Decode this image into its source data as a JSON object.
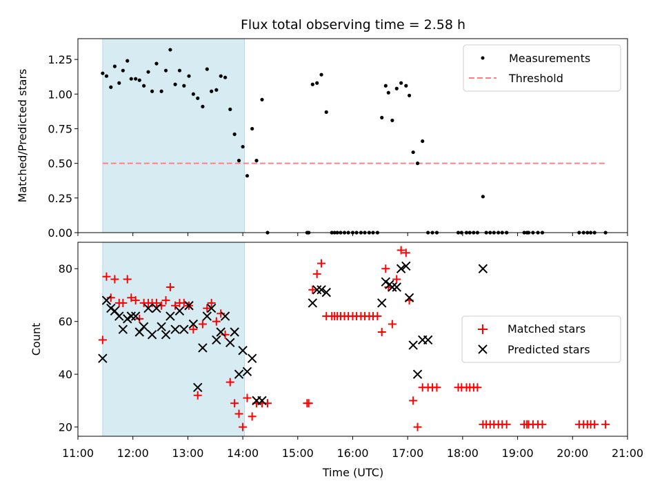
{
  "chart_data": {
    "title": "Flux total observing time = 2.58 h",
    "xlabel": "Time (UTC)",
    "xlim_hours": [
      11.0,
      21.0
    ],
    "x_ticks": [
      {
        "value": 11,
        "label": "11:00"
      },
      {
        "value": 12,
        "label": "12:00"
      },
      {
        "value": 13,
        "label": "13:00"
      },
      {
        "value": 14,
        "label": "14:00"
      },
      {
        "value": 15,
        "label": "15:00"
      },
      {
        "value": 16,
        "label": "16:00"
      },
      {
        "value": 17,
        "label": "17:00"
      },
      {
        "value": 18,
        "label": "18:00"
      },
      {
        "value": 19,
        "label": "19:00"
      },
      {
        "value": 20,
        "label": "20:00"
      },
      {
        "value": 21,
        "label": "21:00"
      }
    ],
    "observing_window_hours": [
      11.45,
      14.03
    ],
    "colors": {
      "span": "#add8e6",
      "measurement": "#000000",
      "threshold": "#ff7f7f",
      "matched": "#ff0000",
      "predicted": "#000000"
    },
    "top": {
      "type": "scatter",
      "ylabel": "Matched/Predicted stars",
      "ylim": [
        0,
        1.4
      ],
      "y_ticks": [
        {
          "value": 0,
          "label": "0.00"
        },
        {
          "value": 0.25,
          "label": "0.25"
        },
        {
          "value": 0.5,
          "label": "0.50"
        },
        {
          "value": 0.75,
          "label": "0.75"
        },
        {
          "value": 1.0,
          "label": "1.00"
        },
        {
          "value": 1.25,
          "label": "1.25"
        }
      ],
      "threshold": {
        "value": 0.5,
        "x_range": [
          11.45,
          20.6
        ],
        "label": "Threshold"
      },
      "measurements_label": "Measurements",
      "x": [
        11.45,
        11.52,
        11.6,
        11.67,
        11.75,
        11.82,
        11.9,
        11.97,
        12.05,
        12.12,
        12.2,
        12.28,
        12.35,
        12.43,
        12.52,
        12.6,
        12.68,
        12.77,
        12.85,
        12.93,
        13.02,
        13.1,
        13.18,
        13.27,
        13.35,
        13.43,
        13.52,
        13.6,
        13.68,
        13.77,
        13.85,
        13.93,
        14.0,
        14.08,
        14.17,
        14.25,
        14.35,
        14.45,
        15.17,
        15.2,
        15.27,
        15.35,
        15.43,
        15.52,
        15.62,
        15.67,
        15.72,
        15.78,
        15.85,
        15.92,
        16.0,
        16.07,
        16.15,
        16.22,
        16.3,
        16.37,
        16.45,
        16.53,
        16.6,
        16.65,
        16.72,
        16.8,
        16.88,
        16.97,
        17.03,
        17.1,
        17.18,
        17.27,
        17.37,
        17.45,
        17.53,
        17.92,
        17.98,
        18.07,
        18.13,
        18.2,
        18.27,
        18.37,
        18.43,
        18.5,
        18.57,
        18.65,
        18.72,
        18.8,
        19.12,
        19.17,
        19.2,
        19.28,
        19.37,
        19.45,
        20.12,
        20.2,
        20.27,
        20.33,
        20.4,
        20.6
      ],
      "y": [
        1.15,
        1.13,
        1.05,
        1.2,
        1.08,
        1.17,
        1.24,
        1.11,
        1.11,
        1.1,
        1.06,
        1.16,
        1.02,
        1.22,
        1.02,
        1.17,
        1.32,
        1.07,
        1.17,
        1.06,
        1.13,
        1.0,
        0.97,
        0.91,
        1.18,
        1.02,
        1.03,
        1.13,
        1.12,
        0.89,
        0.71,
        0.52,
        0.62,
        0.41,
        0.75,
        0.52,
        0.96,
        0.0,
        0.0,
        0.0,
        1.07,
        1.08,
        1.14,
        0.87,
        0.0,
        0.0,
        0.0,
        0.0,
        0.0,
        0.0,
        0.0,
        0.0,
        0.0,
        0.0,
        0.0,
        0.0,
        0.0,
        0.83,
        1.06,
        1.01,
        0.81,
        1.04,
        1.08,
        1.06,
        0.99,
        0.58,
        0.5,
        0.66,
        0.0,
        0.0,
        0.0,
        0.0,
        0.0,
        0.0,
        0.0,
        0.0,
        0.0,
        0.26,
        0.0,
        0.0,
        0.0,
        0.0,
        0.0,
        0.0,
        0.0,
        0.0,
        0.0,
        0.0,
        0.0,
        0.0,
        0.0,
        0.0,
        0.0,
        0.0,
        0.0,
        0.0
      ]
    },
    "bottom": {
      "type": "scatter",
      "ylabel": "Count",
      "ylim": [
        16.5,
        90
      ],
      "y_ticks": [
        {
          "value": 20,
          "label": "20"
        },
        {
          "value": 40,
          "label": "40"
        },
        {
          "value": 60,
          "label": "60"
        },
        {
          "value": 80,
          "label": "80"
        }
      ],
      "series": [
        {
          "name": "Matched stars",
          "marker": "plus",
          "x": [
            11.45,
            11.52,
            11.6,
            11.67,
            11.75,
            11.82,
            11.9,
            11.97,
            12.05,
            12.12,
            12.2,
            12.28,
            12.35,
            12.43,
            12.52,
            12.6,
            12.68,
            12.77,
            12.85,
            12.93,
            13.02,
            13.1,
            13.18,
            13.27,
            13.35,
            13.43,
            13.52,
            13.6,
            13.68,
            13.77,
            13.85,
            13.93,
            14.0,
            14.08,
            14.17,
            14.25,
            14.35,
            14.45,
            15.17,
            15.2,
            15.27,
            15.35,
            15.43,
            15.52,
            15.62,
            15.67,
            15.72,
            15.78,
            15.85,
            15.92,
            16.0,
            16.07,
            16.15,
            16.22,
            16.3,
            16.37,
            16.45,
            16.53,
            16.6,
            16.65,
            16.72,
            16.8,
            16.88,
            16.97,
            17.03,
            17.1,
            17.18,
            17.27,
            17.37,
            17.45,
            17.53,
            17.92,
            17.98,
            18.07,
            18.13,
            18.2,
            18.27,
            18.37,
            18.43,
            18.5,
            18.57,
            18.65,
            18.72,
            18.8,
            19.12,
            19.17,
            19.2,
            19.28,
            19.37,
            19.45,
            20.12,
            20.2,
            20.27,
            20.33,
            20.4,
            20.6
          ],
          "y": [
            53,
            77,
            69,
            76,
            67,
            67,
            76,
            69,
            68,
            61,
            67,
            67,
            67,
            67,
            66,
            68,
            73,
            66,
            67,
            67,
            66,
            57,
            32,
            59,
            65,
            67,
            60,
            63,
            55,
            37,
            29,
            25,
            20,
            31,
            24,
            29,
            29,
            29,
            29,
            29,
            72,
            78,
            82,
            62,
            62,
            62,
            62,
            62,
            62,
            62,
            62,
            62,
            62,
            62,
            62,
            62,
            62,
            56,
            80,
            73,
            59,
            76,
            87,
            86,
            68,
            30,
            20,
            35,
            35,
            35,
            35,
            35,
            35,
            35,
            35,
            35,
            35,
            21,
            21,
            21,
            21,
            21,
            21,
            21,
            21,
            21,
            21,
            21,
            21,
            21,
            21,
            21,
            21,
            21,
            21,
            21
          ]
        },
        {
          "name": "Predicted stars",
          "marker": "x",
          "x": [
            11.45,
            11.52,
            11.6,
            11.67,
            11.75,
            11.82,
            11.9,
            11.97,
            12.05,
            12.12,
            12.2,
            12.28,
            12.35,
            12.43,
            12.52,
            12.6,
            12.68,
            12.77,
            12.85,
            12.93,
            13.02,
            13.1,
            13.18,
            13.27,
            13.35,
            13.43,
            13.52,
            13.6,
            13.68,
            13.77,
            13.85,
            13.93,
            14.0,
            14.08,
            14.17,
            14.25,
            14.35,
            15.27,
            15.35,
            15.43,
            15.52,
            16.53,
            16.6,
            16.67,
            16.72,
            16.8,
            16.88,
            16.97,
            17.03,
            17.1,
            17.18,
            17.27,
            17.37,
            18.37
          ],
          "y": [
            46,
            68,
            65,
            64,
            62,
            57,
            61,
            62,
            62,
            56,
            58,
            65,
            55,
            65,
            58,
            55,
            62,
            57,
            64,
            57,
            66,
            59,
            35,
            50,
            62,
            65,
            53,
            56,
            62,
            52,
            56,
            40,
            49,
            41,
            46,
            30,
            30,
            67,
            72,
            72,
            71,
            67,
            75,
            74,
            73,
            73,
            80,
            81,
            69,
            51,
            40,
            53,
            53,
            80
          ]
        }
      ]
    }
  }
}
